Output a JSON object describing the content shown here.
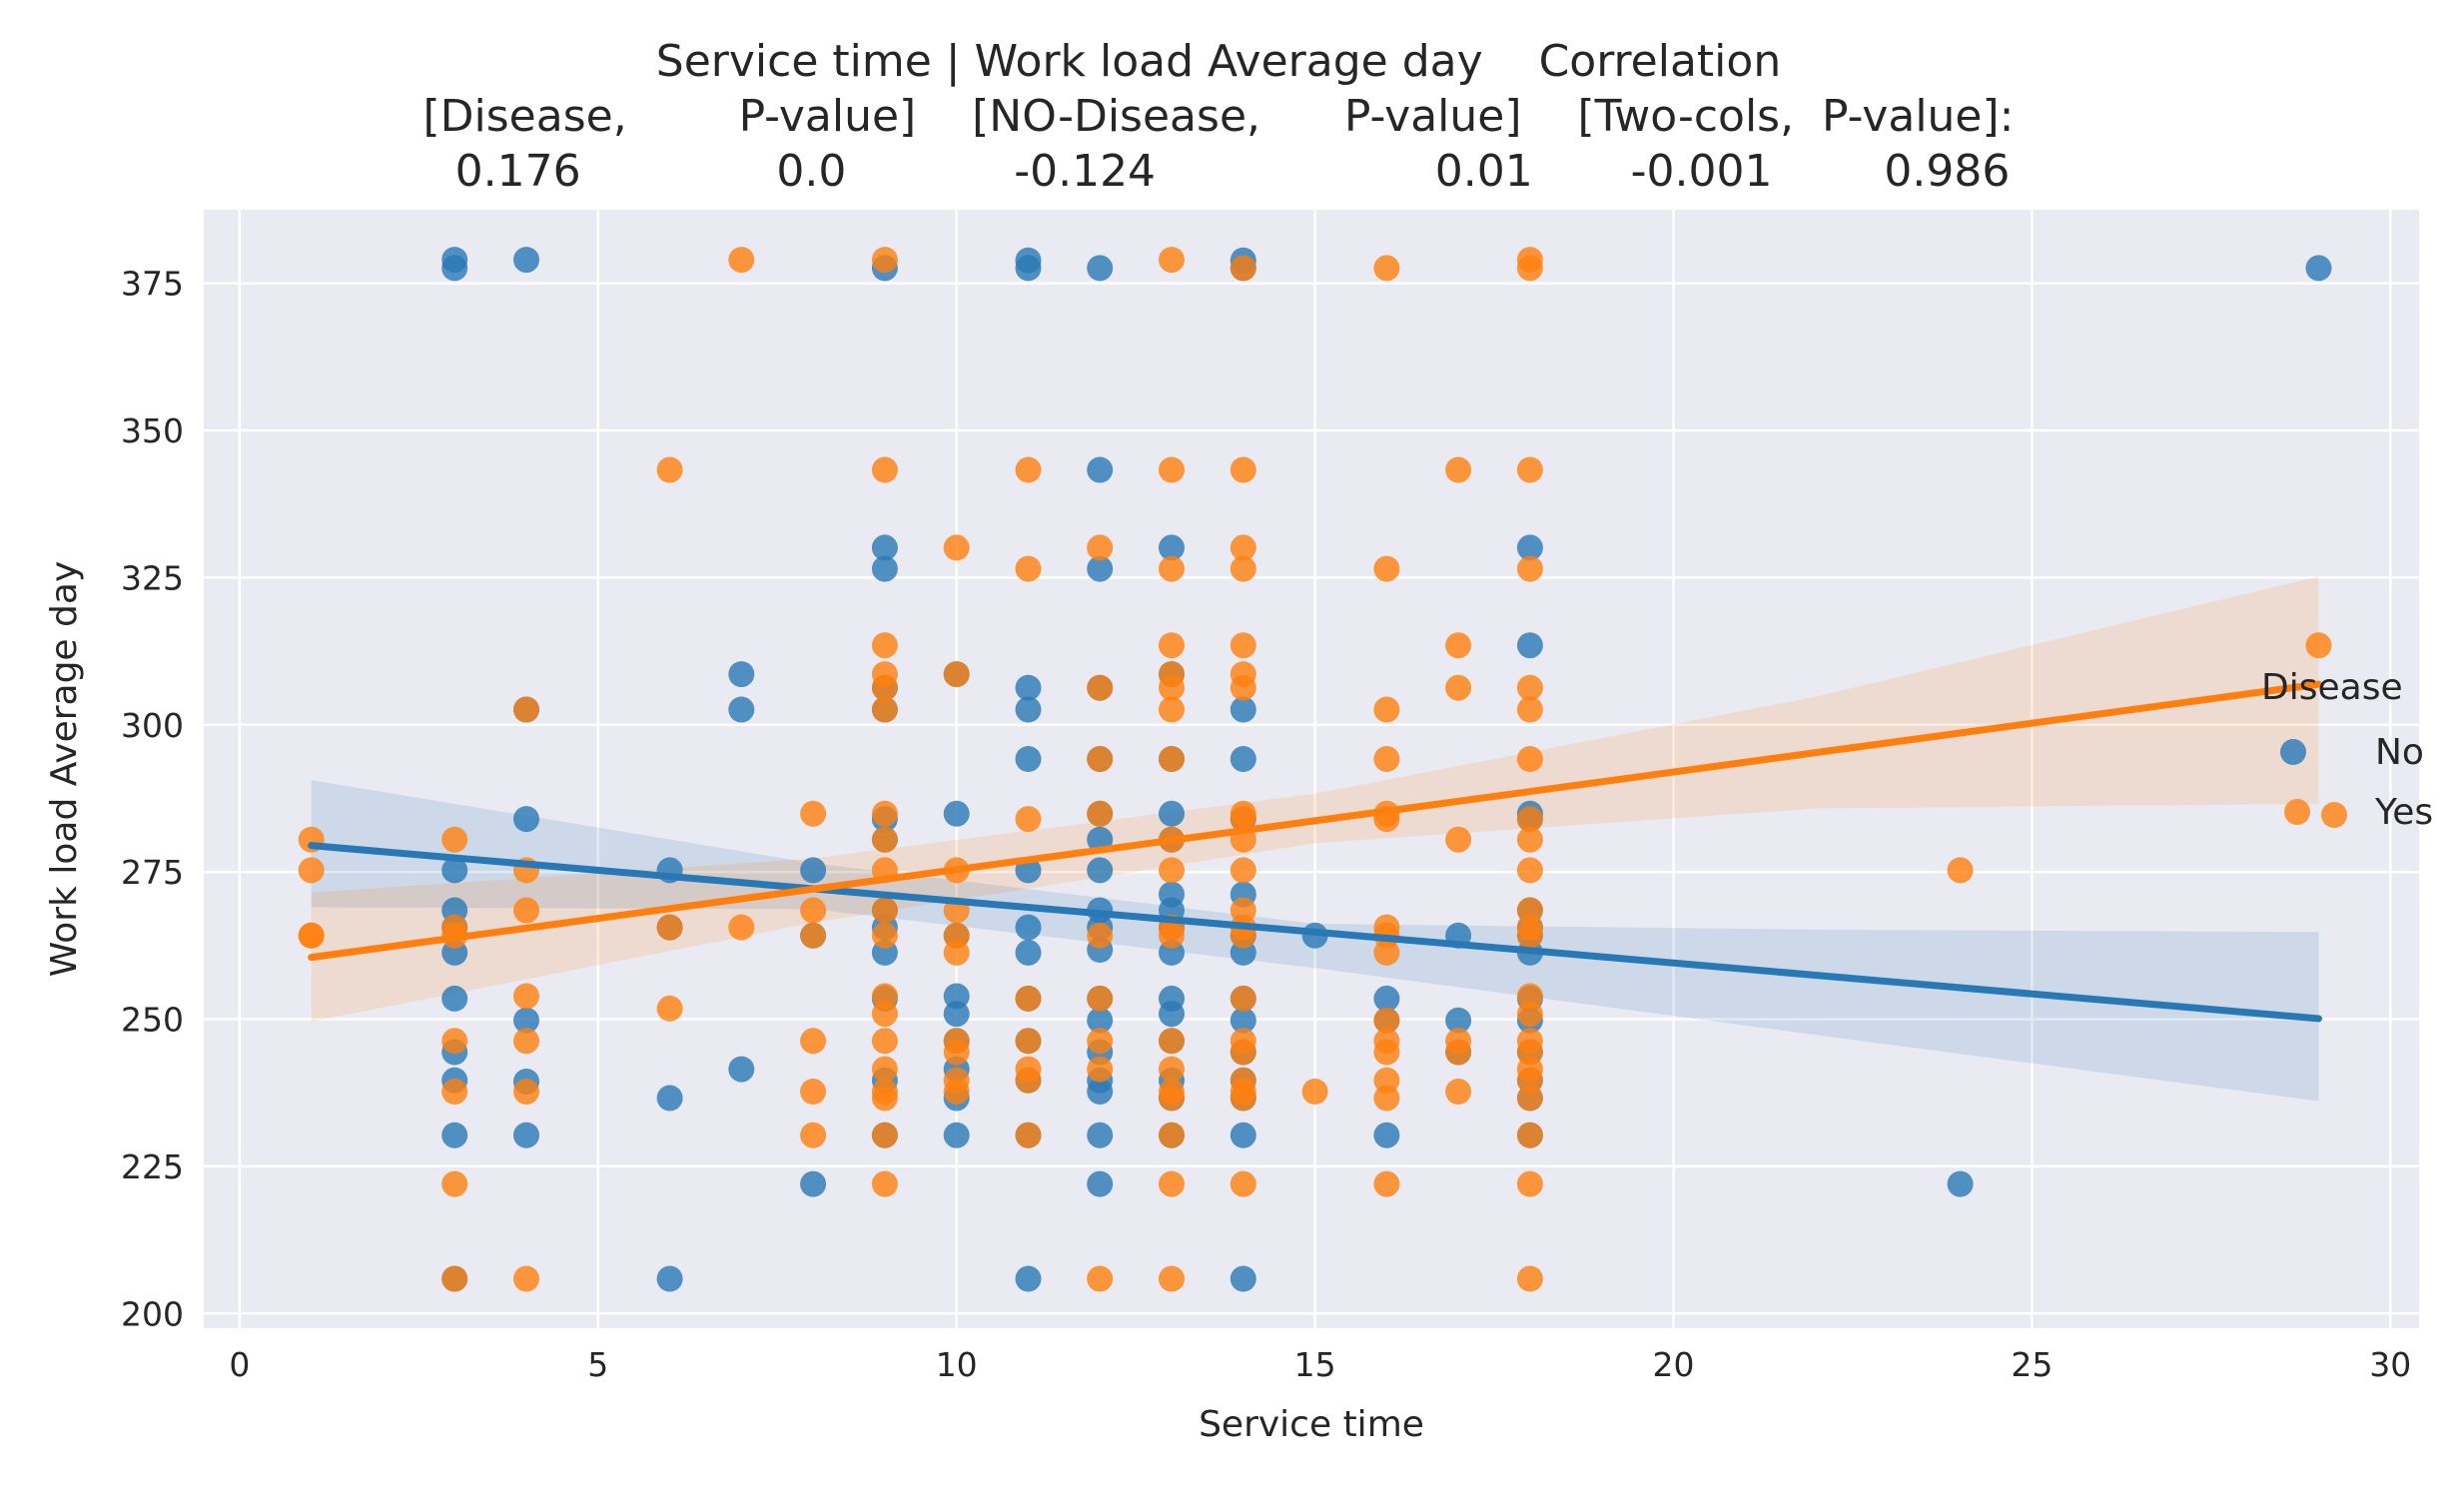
{
  "chart_data": {
    "type": "scatter",
    "title_lines": [
      "Service time | Work load Average day    Correlation",
      "[Disease,        P-value]    [NO-Disease,      P-value]    [Two-cols,  P-value]:",
      "  0.176              0.0            -0.124                    0.01       -0.001        0.986"
    ],
    "xlabel": "Service time",
    "ylabel": "Work load Average day",
    "xlim": [
      -0.5,
      30.4
    ],
    "ylim": [
      197.5,
      387.5
    ],
    "xticks": [
      0,
      5,
      10,
      15,
      20,
      25,
      30
    ],
    "yticks": [
      200,
      225,
      250,
      275,
      300,
      325,
      350,
      375
    ],
    "grid": true,
    "legend": {
      "title": "Disease",
      "placement": "center-right",
      "entries": [
        "No",
        "Yes"
      ]
    },
    "colors": {
      "No": "#2878b5",
      "Yes": "#ff7f0e",
      "background": "#eaeaf2",
      "grid": "#ffffff"
    },
    "series": [
      {
        "name": "No",
        "color": "#2878b5",
        "points": [
          [
            3,
            379
          ],
          [
            3,
            377.6
          ],
          [
            3,
            275.3
          ],
          [
            3,
            268.5
          ],
          [
            3,
            265.6
          ],
          [
            3,
            261.3
          ],
          [
            3,
            253.5
          ],
          [
            3,
            244.4
          ],
          [
            3,
            239.6
          ],
          [
            3,
            230.3
          ],
          [
            3,
            205.9
          ],
          [
            4,
            379
          ],
          [
            4,
            302.6
          ],
          [
            4,
            284
          ],
          [
            4,
            249.8
          ],
          [
            4,
            239.4
          ],
          [
            4,
            230.3
          ],
          [
            6,
            275.3
          ],
          [
            6,
            265.6
          ],
          [
            6,
            236.6
          ],
          [
            6,
            205.9
          ],
          [
            7,
            308.6
          ],
          [
            7,
            302.6
          ],
          [
            7,
            241.5
          ],
          [
            8,
            275.3
          ],
          [
            8,
            264.2
          ],
          [
            8,
            222
          ],
          [
            9,
            377.6
          ],
          [
            9,
            330.1
          ],
          [
            9,
            326.5
          ],
          [
            9,
            306.3
          ],
          [
            9,
            302.6
          ],
          [
            9,
            284
          ],
          [
            9,
            280.5
          ],
          [
            9,
            268.5
          ],
          [
            9,
            265.6
          ],
          [
            9,
            261.3
          ],
          [
            9,
            253.5
          ],
          [
            9,
            239.6
          ],
          [
            9,
            230.3
          ],
          [
            10,
            308.6
          ],
          [
            10,
            284.9
          ],
          [
            10,
            264.2
          ],
          [
            10,
            253.9
          ],
          [
            10,
            250.9
          ],
          [
            10,
            246.3
          ],
          [
            10,
            241.5
          ],
          [
            10,
            236.6
          ],
          [
            10,
            230.3
          ],
          [
            11,
            378.9
          ],
          [
            11,
            377.6
          ],
          [
            11,
            306.3
          ],
          [
            11,
            302.6
          ],
          [
            11,
            294.2
          ],
          [
            11,
            275.3
          ],
          [
            11,
            265.6
          ],
          [
            11,
            261.3
          ],
          [
            11,
            253.5
          ],
          [
            11,
            246.3
          ],
          [
            11,
            239.6
          ],
          [
            11,
            230.3
          ],
          [
            11,
            205.9
          ],
          [
            12,
            377.6
          ],
          [
            12,
            343.3
          ],
          [
            12,
            326.5
          ],
          [
            12,
            306.3
          ],
          [
            12,
            294.2
          ],
          [
            12,
            284.9
          ],
          [
            12,
            280.5
          ],
          [
            12,
            275.3
          ],
          [
            12,
            268.5
          ],
          [
            12,
            265.6
          ],
          [
            12,
            261.8
          ],
          [
            12,
            253.5
          ],
          [
            12,
            249.8
          ],
          [
            12,
            244.4
          ],
          [
            12,
            239.6
          ],
          [
            12,
            237.7
          ],
          [
            12,
            230.3
          ],
          [
            12,
            222
          ],
          [
            13,
            330.1
          ],
          [
            13,
            308.6
          ],
          [
            13,
            294.2
          ],
          [
            13,
            284.9
          ],
          [
            13,
            280.5
          ],
          [
            13,
            271.2
          ],
          [
            13,
            268.5
          ],
          [
            13,
            265.6
          ],
          [
            13,
            261.3
          ],
          [
            13,
            253.5
          ],
          [
            13,
            250.9
          ],
          [
            13,
            246.3
          ],
          [
            13,
            239.6
          ],
          [
            13,
            236.6
          ],
          [
            13,
            230.3
          ],
          [
            14,
            378.9
          ],
          [
            14,
            377.6
          ],
          [
            14,
            302.6
          ],
          [
            14,
            294.2
          ],
          [
            14,
            284
          ],
          [
            14,
            271.2
          ],
          [
            14,
            264.2
          ],
          [
            14,
            261.3
          ],
          [
            14,
            253.5
          ],
          [
            14,
            249.8
          ],
          [
            14,
            244.4
          ],
          [
            14,
            239.6
          ],
          [
            14,
            236.6
          ],
          [
            14,
            230.3
          ],
          [
            14,
            205.9
          ],
          [
            15,
            264.2
          ],
          [
            16,
            253.5
          ],
          [
            16,
            249.8
          ],
          [
            16,
            230.3
          ],
          [
            17,
            264.2
          ],
          [
            17,
            249.8
          ],
          [
            17,
            244.4
          ],
          [
            18,
            330.1
          ],
          [
            18,
            313.5
          ],
          [
            18,
            284.9
          ],
          [
            18,
            284
          ],
          [
            18,
            268.5
          ],
          [
            18,
            265.6
          ],
          [
            18,
            264.2
          ],
          [
            18,
            261.3
          ],
          [
            18,
            253.5
          ],
          [
            18,
            249.8
          ],
          [
            18,
            244.4
          ],
          [
            18,
            239.6
          ],
          [
            18,
            236.6
          ],
          [
            18,
            230.3
          ],
          [
            24,
            222
          ],
          [
            29,
            377.6
          ]
        ],
        "regression": {
          "x": [
            1,
            29
          ],
          "y": [
            279.5,
            250.1
          ]
        },
        "ci_band": {
          "x": [
            1,
            8,
            15,
            22,
            29
          ],
          "lower": [
            269,
            268.7,
            258.7,
            247.3,
            236.1
          ],
          "upper": [
            290.6,
            276.5,
            266.2,
            265.2,
            264.8
          ]
        }
      },
      {
        "name": "Yes",
        "color": "#ff7f0e",
        "points": [
          [
            1,
            280.5
          ],
          [
            1,
            275.3
          ],
          [
            1,
            264.2
          ],
          [
            1,
            264.2
          ],
          [
            3,
            280.5
          ],
          [
            3,
            265.6
          ],
          [
            3,
            264.2
          ],
          [
            3,
            246.3
          ],
          [
            3,
            237.7
          ],
          [
            3,
            222
          ],
          [
            3,
            205.9
          ],
          [
            4,
            302.6
          ],
          [
            4,
            275.3
          ],
          [
            4,
            268.5
          ],
          [
            4,
            253.9
          ],
          [
            4,
            246.3
          ],
          [
            4,
            237.7
          ],
          [
            4,
            205.9
          ],
          [
            6,
            343.3
          ],
          [
            6,
            265.6
          ],
          [
            6,
            251.8
          ],
          [
            7,
            379
          ],
          [
            7,
            265.6
          ],
          [
            8,
            284.9
          ],
          [
            8,
            268.5
          ],
          [
            8,
            264.2
          ],
          [
            8,
            246.3
          ],
          [
            8,
            237.7
          ],
          [
            8,
            230.3
          ],
          [
            9,
            379
          ],
          [
            9,
            343.3
          ],
          [
            9,
            313.5
          ],
          [
            9,
            308.6
          ],
          [
            9,
            306.3
          ],
          [
            9,
            302.6
          ],
          [
            9,
            284.9
          ],
          [
            9,
            280.5
          ],
          [
            9,
            275.3
          ],
          [
            9,
            268.5
          ],
          [
            9,
            264.2
          ],
          [
            9,
            253.9
          ],
          [
            9,
            250.9
          ],
          [
            9,
            246.3
          ],
          [
            9,
            241.5
          ],
          [
            9,
            237.7
          ],
          [
            9,
            236.6
          ],
          [
            9,
            230.3
          ],
          [
            9,
            222
          ],
          [
            10,
            330.1
          ],
          [
            10,
            308.6
          ],
          [
            10,
            275.3
          ],
          [
            10,
            268.5
          ],
          [
            10,
            264.2
          ],
          [
            10,
            261.3
          ],
          [
            10,
            246.3
          ],
          [
            10,
            244.4
          ],
          [
            10,
            239.6
          ],
          [
            10,
            237.7
          ],
          [
            11,
            343.3
          ],
          [
            11,
            326.5
          ],
          [
            11,
            284
          ],
          [
            11,
            253.5
          ],
          [
            11,
            246.3
          ],
          [
            11,
            241.5
          ],
          [
            11,
            239.6
          ],
          [
            11,
            230.3
          ],
          [
            12,
            330.1
          ],
          [
            12,
            306.3
          ],
          [
            12,
            294.2
          ],
          [
            12,
            284.9
          ],
          [
            12,
            264.2
          ],
          [
            12,
            253.5
          ],
          [
            12,
            246.3
          ],
          [
            12,
            241.5
          ],
          [
            12,
            205.9
          ],
          [
            13,
            379
          ],
          [
            13,
            343.3
          ],
          [
            13,
            326.5
          ],
          [
            13,
            313.5
          ],
          [
            13,
            308.6
          ],
          [
            13,
            306.3
          ],
          [
            13,
            302.6
          ],
          [
            13,
            294.2
          ],
          [
            13,
            280.5
          ],
          [
            13,
            275.3
          ],
          [
            13,
            265.6
          ],
          [
            13,
            264.2
          ],
          [
            13,
            246.3
          ],
          [
            13,
            241.5
          ],
          [
            13,
            237.7
          ],
          [
            13,
            236.6
          ],
          [
            13,
            230.3
          ],
          [
            13,
            222
          ],
          [
            13,
            205.9
          ],
          [
            14,
            377.6
          ],
          [
            14,
            343.3
          ],
          [
            14,
            330.1
          ],
          [
            14,
            326.5
          ],
          [
            14,
            313.5
          ],
          [
            14,
            308.6
          ],
          [
            14,
            306.3
          ],
          [
            14,
            284.9
          ],
          [
            14,
            284
          ],
          [
            14,
            280.5
          ],
          [
            14,
            275.3
          ],
          [
            14,
            268.5
          ],
          [
            14,
            265.6
          ],
          [
            14,
            264.2
          ],
          [
            14,
            253.5
          ],
          [
            14,
            246.3
          ],
          [
            14,
            244.4
          ],
          [
            14,
            239.6
          ],
          [
            14,
            237.7
          ],
          [
            14,
            236.6
          ],
          [
            14,
            222
          ],
          [
            15,
            237.7
          ],
          [
            16,
            377.6
          ],
          [
            16,
            326.5
          ],
          [
            16,
            302.6
          ],
          [
            16,
            294.2
          ],
          [
            16,
            284.9
          ],
          [
            16,
            284
          ],
          [
            16,
            265.6
          ],
          [
            16,
            264.2
          ],
          [
            16,
            261.3
          ],
          [
            16,
            249.8
          ],
          [
            16,
            246.3
          ],
          [
            16,
            244.4
          ],
          [
            16,
            239.6
          ],
          [
            16,
            236.6
          ],
          [
            16,
            222
          ],
          [
            17,
            343.3
          ],
          [
            17,
            313.5
          ],
          [
            17,
            306.3
          ],
          [
            17,
            280.5
          ],
          [
            17,
            246.3
          ],
          [
            17,
            244.4
          ],
          [
            17,
            237.7
          ],
          [
            18,
            379
          ],
          [
            18,
            377.6
          ],
          [
            18,
            343.3
          ],
          [
            18,
            326.5
          ],
          [
            18,
            306.3
          ],
          [
            18,
            302.6
          ],
          [
            18,
            294.2
          ],
          [
            18,
            284
          ],
          [
            18,
            280.5
          ],
          [
            18,
            275.3
          ],
          [
            18,
            268.5
          ],
          [
            18,
            265.6
          ],
          [
            18,
            264.2
          ],
          [
            18,
            253.9
          ],
          [
            18,
            250.9
          ],
          [
            18,
            246.3
          ],
          [
            18,
            244.4
          ],
          [
            18,
            241.5
          ],
          [
            18,
            239.6
          ],
          [
            18,
            236.6
          ],
          [
            18,
            230.3
          ],
          [
            18,
            222
          ],
          [
            18,
            205.9
          ],
          [
            24,
            275.3
          ],
          [
            29,
            313.5
          ]
        ],
        "regression": {
          "x": [
            1,
            29
          ],
          "y": [
            260.5,
            306.9
          ]
        },
        "ci_band": {
          "x": [
            1,
            8,
            15,
            22,
            29
          ],
          "lower": [
            249.6,
            266.4,
            279.9,
            285.8,
            286.6
          ],
          "upper": [
            271.5,
            277.3,
            288.3,
            304.8,
            325.2
          ]
        }
      }
    ]
  }
}
